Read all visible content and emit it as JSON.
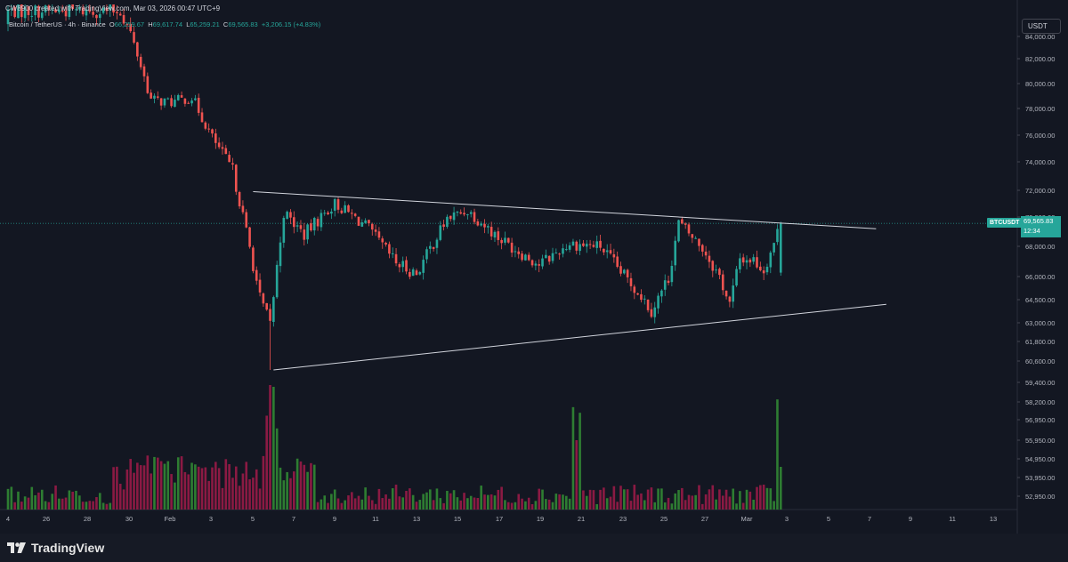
{
  "header": {
    "author_line": "CW8900 created with TradingView.com, Mar 03, 2026 00:47 UTC+9",
    "symbol": "Bitcoin / TetherUS · 4h · Binance",
    "o_key": "O",
    "o_val": "66,259.67",
    "h_key": "H",
    "h_val": "69,617.74",
    "l_key": "L",
    "l_val": "65,259.21",
    "c_key": "C",
    "c_val": "69,565.83",
    "change": "+3,206.15 (+4.83%)"
  },
  "axis": {
    "currency": "USDT"
  },
  "price_tag": {
    "symbol": "BTCUSDT",
    "price": "69,565.83",
    "countdown": "12:34"
  },
  "footer": {
    "brand": "TradingView"
  },
  "colors": {
    "up": "#26a69a",
    "down": "#ef5350",
    "vol_up": "#2e7d32",
    "vol_down": "#8b1a43",
    "background": "#131722",
    "trendline": "#d1d4dc"
  },
  "chart_data": {
    "type": "candlestick",
    "symbol": "BTCUSDT",
    "interval": "4h",
    "price_range": [
      59300,
      86000
    ],
    "y_ticks": [
      "84,000.00",
      "82,000.00",
      "80,000.00",
      "78,000.00",
      "76,000.00",
      "74,000.00",
      "72,000.00",
      "70,000.00",
      "68,000.00",
      "66,000.00",
      "64,500.00",
      "63,000.00",
      "61,800.00",
      "60,600.00",
      "59,400.00",
      "58,200.00",
      "56,950.00",
      "55,950.00",
      "54,950.00",
      "53,950.00",
      "52,950.00"
    ],
    "x_ticks": [
      "4",
      "26",
      "28",
      "30",
      "Feb",
      "3",
      "5",
      "7",
      "9",
      "11",
      "13",
      "15",
      "17",
      "19",
      "21",
      "23",
      "25",
      "27",
      "Mar",
      "3",
      "5",
      "7",
      "9",
      "11",
      "13"
    ],
    "x_range": [
      "Jan 24",
      "Mar 14"
    ],
    "last_price": 69565.83,
    "candle_keypoints": [
      [
        "Jan 29 12:00",
        85600
      ],
      [
        "Jan 30 00:00",
        84200
      ],
      [
        "Jan 31 00:00",
        78700
      ],
      [
        "Feb 1 00:00",
        78500
      ],
      [
        "Feb 2 00:00",
        78900
      ],
      [
        "Feb 3 00:00",
        75800
      ],
      [
        "Feb 4 00:00",
        73400
      ],
      [
        "Feb 5 08:00",
        64600
      ],
      [
        "Feb 5 20:00",
        62900
      ],
      [
        "Feb 6 12:00",
        70300
      ],
      [
        "Feb 7 12:00",
        68800
      ],
      [
        "Feb 9 00:00",
        71000
      ],
      [
        "Feb 10 12:00",
        69400
      ],
      [
        "Feb 12 00:00",
        66900
      ],
      [
        "Feb 13 00:00",
        66200
      ],
      [
        "Feb 14 12:00",
        69900
      ],
      [
        "Feb 15 12:00",
        70500
      ],
      [
        "Feb 17 00:00",
        68600
      ],
      [
        "Feb 19 00:00",
        66800
      ],
      [
        "Feb 20 12:00",
        68200
      ],
      [
        "Feb 22 00:00",
        68000
      ],
      [
        "Feb 23 00:00",
        66300
      ],
      [
        "Feb 24 00:00",
        64800
      ],
      [
        "Feb 24 12:00",
        63800
      ],
      [
        "Feb 25 08:00",
        65900
      ],
      [
        "Feb 25 20:00",
        69600
      ],
      [
        "Feb 27 00:00",
        67900
      ],
      [
        "Feb 27 20:00",
        66000
      ],
      [
        "Feb 28 08:00",
        64200
      ],
      [
        "Feb 28 20:00",
        67200
      ],
      [
        "Mar 1 12:00",
        67100
      ],
      [
        "Mar 2 00:00",
        66400
      ],
      [
        "Mar 2 20:00",
        69566
      ]
    ],
    "volume_spikes": [
      "Feb 5 20:00",
      "Feb 6 00:00",
      "Feb 20 20:00",
      "Mar 2 20:00"
    ],
    "trendlines": [
      {
        "name": "upper",
        "from": [
          "Feb 5 00:00",
          71900
        ],
        "to": [
          "Mar 7 12:00",
          69200
        ]
      },
      {
        "name": "lower",
        "from": [
          "Feb 6 00:00",
          60100
        ],
        "to": [
          "Mar 8 00:00",
          64200
        ]
      }
    ],
    "grid": false,
    "legend": "top-left"
  }
}
